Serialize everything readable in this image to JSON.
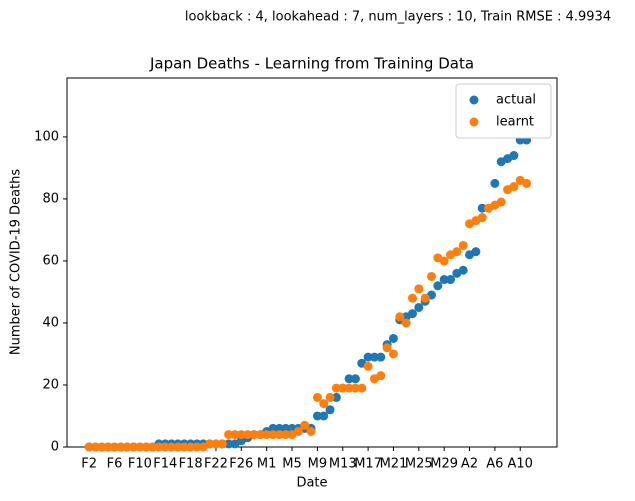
{
  "chart_data": {
    "type": "scatter",
    "suptitle": "lookback : 4, lookahead : 7, num_layers : 10, Train RMSE : 4.9934",
    "title": "Japan Deaths - Learning from Training Data",
    "x_label": "Date",
    "y_label": "Number of COVID-19 Deaths",
    "categories": [
      "F2",
      null,
      null,
      null,
      "F6",
      null,
      null,
      null,
      "F10",
      null,
      null,
      null,
      "F14",
      null,
      null,
      null,
      "F18",
      null,
      null,
      null,
      "F22",
      null,
      null,
      null,
      "F26",
      null,
      null,
      null,
      "M1",
      null,
      null,
      null,
      "M5",
      null,
      null,
      null,
      "M9",
      null,
      null,
      null,
      "M13",
      null,
      null,
      null,
      "M17",
      null,
      null,
      null,
      "M21",
      null,
      null,
      null,
      "M25",
      null,
      null,
      null,
      "M29",
      null,
      null,
      null,
      "A2",
      null,
      null,
      null,
      "A6",
      null,
      null,
      null,
      "A10",
      null
    ],
    "series": [
      {
        "name": "actual",
        "color": "#1f77b4",
        "values": [
          0,
          0,
          0,
          0,
          0,
          0,
          0,
          0,
          0,
          0,
          0,
          1,
          1,
          1,
          1,
          1,
          1,
          1,
          1,
          1,
          1,
          1,
          1,
          1,
          2,
          3,
          4,
          4,
          5,
          6,
          6,
          6,
          6,
          6,
          6,
          6,
          10,
          10,
          12,
          16,
          19,
          22,
          22,
          27,
          29,
          29,
          29,
          33,
          35,
          41,
          42,
          43,
          45,
          47,
          49,
          52,
          54,
          54,
          56,
          57,
          62,
          63,
          77,
          77,
          85,
          92,
          93,
          94,
          99,
          99
        ]
      },
      {
        "name": "learnt",
        "color": "#ff7f0e",
        "values": [
          0,
          0,
          0,
          0,
          0,
          0,
          0,
          0,
          0,
          0,
          0,
          0,
          0,
          0,
          0,
          0,
          0,
          0,
          0,
          1,
          1,
          1,
          4,
          4,
          4,
          4,
          4,
          4,
          4,
          4,
          4,
          4,
          4,
          5,
          7,
          5,
          16,
          14,
          16,
          19,
          19,
          19,
          19,
          19,
          26,
          22,
          23,
          32,
          30,
          42,
          40,
          48,
          51,
          48,
          55,
          61,
          60,
          62,
          63,
          65,
          72,
          73,
          74,
          77,
          78,
          79,
          83,
          84,
          86,
          85
        ]
      }
    ],
    "ylim": [
      0,
      119
    ],
    "yticks": [
      0,
      20,
      40,
      60,
      80,
      100
    ],
    "legend": "upper right"
  }
}
